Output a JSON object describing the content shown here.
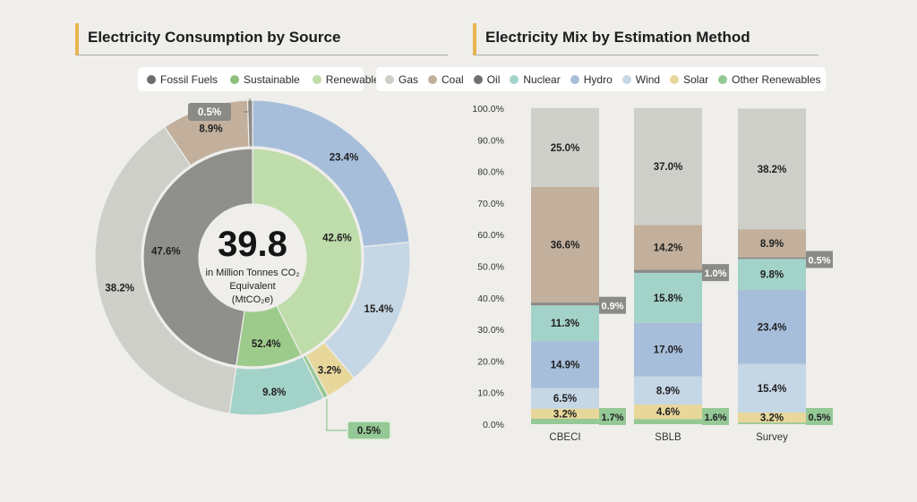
{
  "colors": {
    "gas": "#cfcfca",
    "coal": "#c2b09d",
    "oil": "#8a8a86",
    "nuclear": "#a3d2c9",
    "hydro": "#a7bedb",
    "wind": "#c5d6e5",
    "solar": "#e7d79b",
    "other_renewables": "#94c895",
    "fossil_fuels": "#8f8f8b",
    "sustainable": "#9dcb8c",
    "renewable": "#bfdcab",
    "accent": "#e7b64f"
  },
  "left": {
    "title": "Electricity Consumption by Source",
    "legend": [
      {
        "label": "Fossil Fuels",
        "color": "#6d6d6a"
      },
      {
        "label": "Sustainable",
        "color": "#8ec07c"
      },
      {
        "label": "Renewable",
        "color": "#bfdcab"
      }
    ]
  },
  "right": {
    "title": "Electricity Mix by Estimation Method",
    "legend": [
      {
        "label": "Gas",
        "color": "#cfcfca"
      },
      {
        "label": "Coal",
        "color": "#c2b09d"
      },
      {
        "label": "Oil",
        "color": "#6f6f6c"
      },
      {
        "label": "Nuclear",
        "color": "#a3d2c9"
      },
      {
        "label": "Hydro",
        "color": "#a7bedb"
      },
      {
        "label": "Wind",
        "color": "#c5d6e5"
      },
      {
        "label": "Solar",
        "color": "#e7d79b"
      },
      {
        "label": "Other Renewables",
        "color": "#94c895"
      }
    ]
  },
  "chart_data": [
    {
      "type": "pie",
      "subtype": "double-donut",
      "title": "Electricity Consumption by Source",
      "center_value": "39.8",
      "center_label": [
        "in Million Tonnes CO₂",
        "Equivalent",
        "(MtCO₂e)"
      ],
      "inner_ring": [
        {
          "name": "Renewable",
          "value": 42.6,
          "label": "42.6%",
          "color": "#bfdcab"
        },
        {
          "name": "Sustainable",
          "value": 9.8,
          "label": "52.4%",
          "color": "#9dcb8c"
        },
        {
          "name": "Fossil Fuels",
          "value": 47.6,
          "label": "47.6%",
          "color": "#8f8f8b"
        }
      ],
      "outer_ring": [
        {
          "name": "Hydro",
          "value": 23.4,
          "label": "23.4%",
          "color": "#a7bedb"
        },
        {
          "name": "Wind",
          "value": 15.4,
          "label": "15.4%",
          "color": "#c5d6e5"
        },
        {
          "name": "Solar",
          "value": 3.2,
          "label": "3.2%",
          "color": "#e7d79b"
        },
        {
          "name": "Other Renewables",
          "value": 0.5,
          "label": "0.5%",
          "color": "#94c895",
          "callout": true
        },
        {
          "name": "Nuclear",
          "value": 9.8,
          "label": "9.8%",
          "color": "#a3d2c9"
        },
        {
          "name": "Gas",
          "value": 38.2,
          "label": "38.2%",
          "color": "#cfcfca"
        },
        {
          "name": "Coal",
          "value": 8.9,
          "label": "8.9%",
          "color": "#c2b09d"
        },
        {
          "name": "Oil",
          "value": 0.5,
          "label": "0.5%",
          "color": "#8a8a86",
          "callout": true
        }
      ]
    },
    {
      "type": "bar",
      "subtype": "stacked-100",
      "title": "Electricity Mix by Estimation Method",
      "categories": [
        "CBECI",
        "SBLB",
        "Survey"
      ],
      "ylim": [
        0,
        100
      ],
      "yticks": [
        "0.0%",
        "10.0%",
        "20.0%",
        "30.0%",
        "40.0%",
        "50.0%",
        "60.0%",
        "70.0%",
        "80.0%",
        "90.0%",
        "100.0%"
      ],
      "series": [
        {
          "name": "Other Renewables",
          "color": "#94c895",
          "values": [
            1.7,
            1.6,
            0.5
          ],
          "callout": true
        },
        {
          "name": "Solar",
          "color": "#e7d79b",
          "values": [
            3.2,
            4.6,
            3.2
          ]
        },
        {
          "name": "Wind",
          "color": "#c5d6e5",
          "values": [
            6.5,
            8.9,
            15.4
          ]
        },
        {
          "name": "Hydro",
          "color": "#a7bedb",
          "values": [
            14.9,
            17.0,
            23.4
          ]
        },
        {
          "name": "Nuclear",
          "color": "#a3d2c9",
          "values": [
            11.3,
            15.8,
            9.8
          ]
        },
        {
          "name": "Oil",
          "color": "#8a8a86",
          "values": [
            0.9,
            1.0,
            0.5
          ],
          "callout": true
        },
        {
          "name": "Coal",
          "color": "#c2b09d",
          "values": [
            36.6,
            14.2,
            8.9
          ]
        },
        {
          "name": "Gas",
          "color": "#cfcfca",
          "values": [
            25.0,
            37.0,
            38.2
          ]
        }
      ]
    }
  ]
}
